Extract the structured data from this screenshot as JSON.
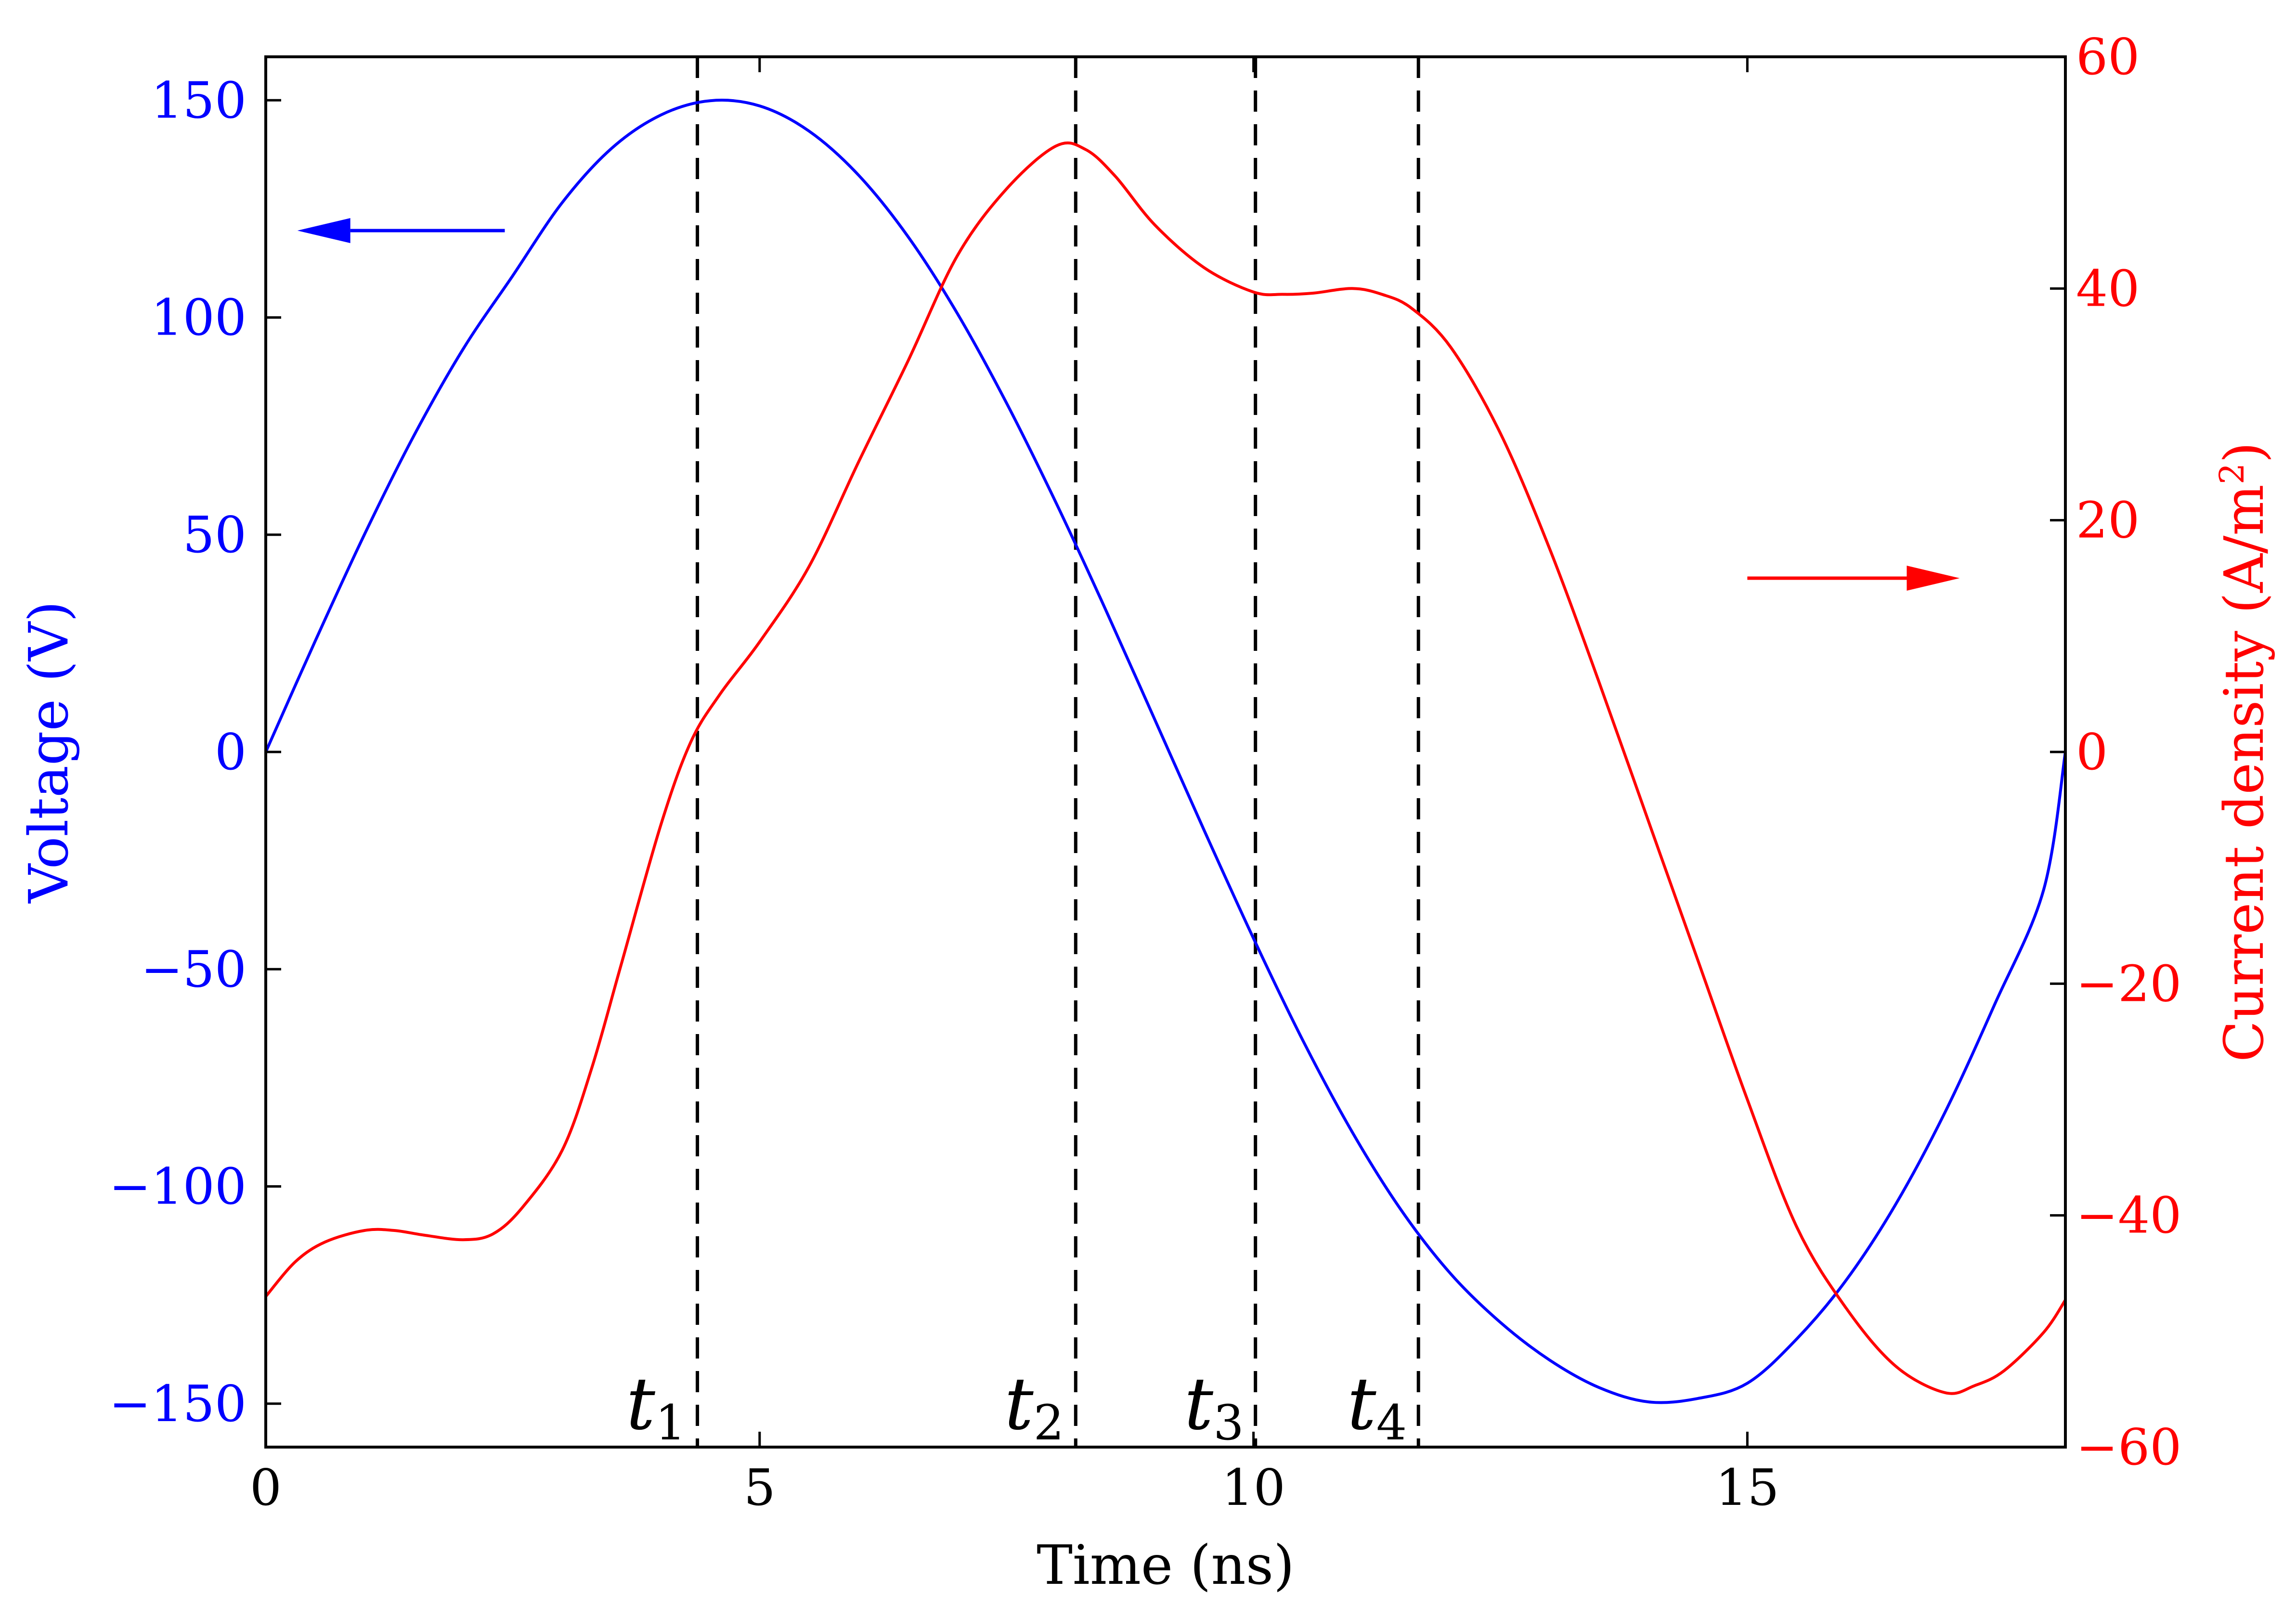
{
  "chart_data": {
    "type": "line",
    "xlabel": "Time (ns)",
    "ylabel_left": "Voltage (V)",
    "ylabel_right_parts": [
      "Current density (A/m",
      "2",
      ")"
    ],
    "xlim": [
      0,
      18.22
    ],
    "ylim_left": [
      -160,
      160
    ],
    "ylim_right": [
      -60,
      60
    ],
    "x_ticks": [
      0,
      5,
      10,
      15
    ],
    "x_tick_labels": [
      "0",
      "5",
      "10",
      "15"
    ],
    "y_left_ticks": [
      150,
      100,
      50,
      0,
      -50,
      -100,
      -150
    ],
    "y_left_tick_labels": [
      "150",
      "100",
      "50",
      "0",
      "−50",
      "−100",
      "−150"
    ],
    "y_right_ticks": [
      60,
      40,
      20,
      0,
      -20,
      -40,
      -60
    ],
    "y_right_tick_labels": [
      "60",
      "40",
      "20",
      "0",
      "−20",
      "−40",
      "−60"
    ],
    "grid": false,
    "colors": {
      "voltage": "#0000ff",
      "current": "#ff0000",
      "axes": "#000000",
      "markers": "#000000"
    },
    "series": [
      {
        "axis": "left",
        "color": "#0000ff",
        "x": [
          0,
          0.5,
          1,
          1.5,
          2,
          2.5,
          3,
          3.5,
          4,
          4.5,
          5,
          5.5,
          6,
          6.5,
          7,
          7.5,
          8,
          8.5,
          9,
          9.5,
          10,
          10.5,
          11,
          11.5,
          12,
          12.5,
          13,
          13.5,
          14,
          14.5,
          15,
          15.5,
          16,
          16.5,
          17,
          17.5,
          18,
          18.22
        ],
        "y": [
          0,
          25.5,
          50.1,
          72.8,
          92.8,
          109.6,
          126.4,
          138.9,
          146.6,
          149.9,
          148.7,
          142.9,
          132.8,
          118.7,
          101,
          80.3,
          57.4,
          32.9,
          7.5,
          -18,
          -42.9,
          -66.4,
          -87.5,
          -105.6,
          -120.2,
          -131.3,
          -140,
          -146.3,
          -149.6,
          -148.8,
          -145.3,
          -135.1,
          -121.6,
          -104.2,
          -83,
          -58.3,
          -31.7,
          0
        ]
      },
      {
        "axis": "right",
        "color": "#ff0000",
        "x": [
          0,
          0.3,
          0.6,
          1,
          1.3,
          1.6,
          2,
          2.3,
          2.6,
          3,
          3.3,
          3.6,
          4,
          4.3,
          4.6,
          5,
          5.5,
          6,
          6.5,
          7,
          7.5,
          8,
          8.3,
          8.6,
          9,
          9.5,
          10,
          10.3,
          10.6,
          11,
          11.3,
          11.6,
          12,
          12.5,
          13,
          13.5,
          14,
          14.5,
          15,
          15.5,
          16,
          16.5,
          17,
          17.3,
          17.6,
          18,
          18.22
        ],
        "y": [
          -47,
          -44,
          -42.3,
          -41.3,
          -41.3,
          -41.7,
          -42.1,
          -41.6,
          -39.3,
          -34.4,
          -27.3,
          -18.3,
          -6.3,
          0.8,
          5,
          9.5,
          16,
          25,
          33.7,
          42.8,
          48.6,
          52.3,
          52,
          49.7,
          45.5,
          41.8,
          39.7,
          39.5,
          39.6,
          40,
          39.5,
          38.3,
          34.9,
          27.5,
          17.5,
          6,
          -6,
          -18,
          -30,
          -41,
          -48,
          -53,
          -55.3,
          -54.7,
          -53.4,
          -50.1,
          -47.3
        ]
      }
    ],
    "vlines": [
      {
        "x": 4.37,
        "label": "t",
        "sub": "1"
      },
      {
        "x": 8.2,
        "label": "t",
        "sub": "2"
      },
      {
        "x": 10.02,
        "label": "t",
        "sub": "3"
      },
      {
        "x": 11.67,
        "label": "t",
        "sub": "4"
      }
    ],
    "annotations": [
      {
        "type": "arrow",
        "points_to": "left axis",
        "color": "#0000ff",
        "from": [
          2.42,
          120
        ],
        "to": [
          0.32,
          120
        ],
        "y_axis": "left"
      },
      {
        "type": "arrow",
        "points_to": "right axis",
        "color": "#ff0000",
        "from": [
          15,
          15
        ],
        "to": [
          17.15,
          15
        ],
        "y_axis": "right"
      }
    ]
  }
}
